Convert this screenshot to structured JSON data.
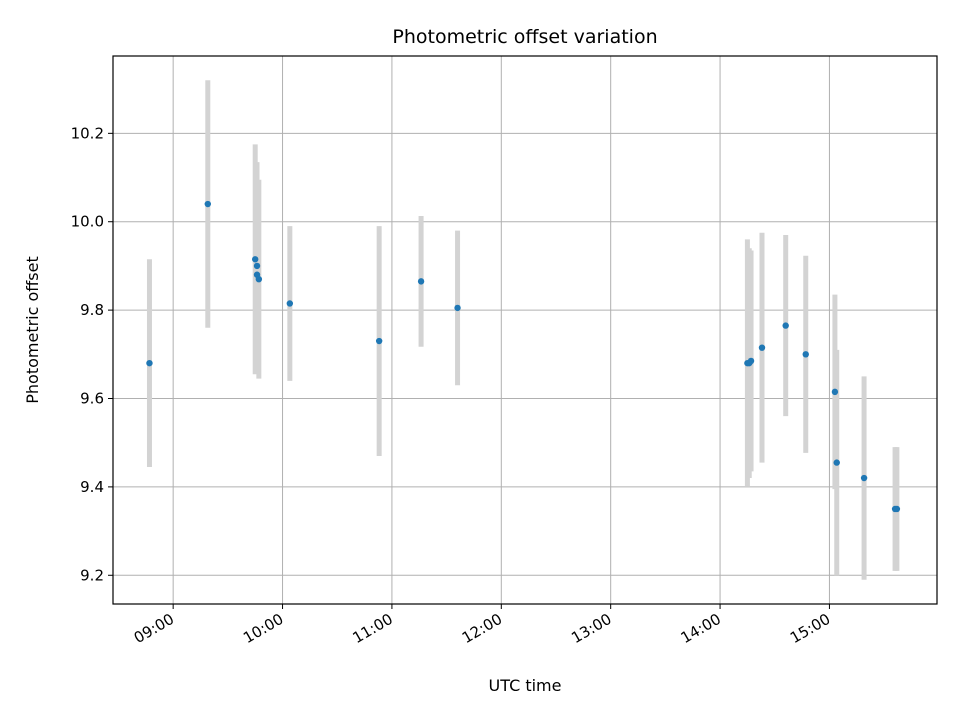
{
  "chart_data": {
    "type": "scatter",
    "title": "Photometric offset variation",
    "xlabel": "UTC time",
    "ylabel": "Photometric offset",
    "x_axis_type": "time",
    "xlim": [
      "08:27",
      "15:59"
    ],
    "ylim": [
      9.135,
      10.375
    ],
    "x_ticks": [
      "09:00",
      "10:00",
      "11:00",
      "12:00",
      "13:00",
      "14:00",
      "15:00"
    ],
    "y_ticks": [
      9.2,
      9.4,
      9.6,
      9.8,
      10.0,
      10.2
    ],
    "y_tick_labels": [
      "9.2",
      "9.4",
      "9.6",
      "9.8",
      "10.0",
      "10.2"
    ],
    "grid": true,
    "marker_color": "#1f77b4",
    "errorbar_color": "#d3d3d3",
    "points": [
      {
        "x": "08:47",
        "y": 9.68,
        "yerr": 0.235
      },
      {
        "x": "09:19",
        "y": 10.04,
        "yerr": 0.28
      },
      {
        "x": "09:45",
        "y": 9.915,
        "yerr": 0.26
      },
      {
        "x": "09:46",
        "y": 9.9,
        "yerr": 0.235
      },
      {
        "x": "09:46",
        "y": 9.88,
        "yerr": 0.21
      },
      {
        "x": "09:47",
        "y": 9.87,
        "yerr": 0.225
      },
      {
        "x": "10:04",
        "y": 9.815,
        "yerr": 0.175
      },
      {
        "x": "10:53",
        "y": 9.73,
        "yerr": 0.26
      },
      {
        "x": "11:16",
        "y": 9.865,
        "yerr": 0.148
      },
      {
        "x": "11:36",
        "y": 9.805,
        "yerr": 0.175
      },
      {
        "x": "14:15",
        "y": 9.68,
        "yerr": 0.28
      },
      {
        "x": "14:16",
        "y": 9.68,
        "yerr": 0.26
      },
      {
        "x": "14:17",
        "y": 9.685,
        "yerr": 0.25
      },
      {
        "x": "14:23",
        "y": 9.715,
        "yerr": 0.26
      },
      {
        "x": "14:36",
        "y": 9.765,
        "yerr": 0.205
      },
      {
        "x": "14:47",
        "y": 9.7,
        "yerr": 0.223
      },
      {
        "x": "15:03",
        "y": 9.615,
        "yerr": 0.22
      },
      {
        "x": "15:04",
        "y": 9.455,
        "yerr": 0.255
      },
      {
        "x": "15:19",
        "y": 9.42,
        "yerr": 0.23
      },
      {
        "x": "15:36",
        "y": 9.35,
        "yerr": 0.14
      },
      {
        "x": "15:37",
        "y": 9.35,
        "yerr": 0.14
      }
    ]
  }
}
